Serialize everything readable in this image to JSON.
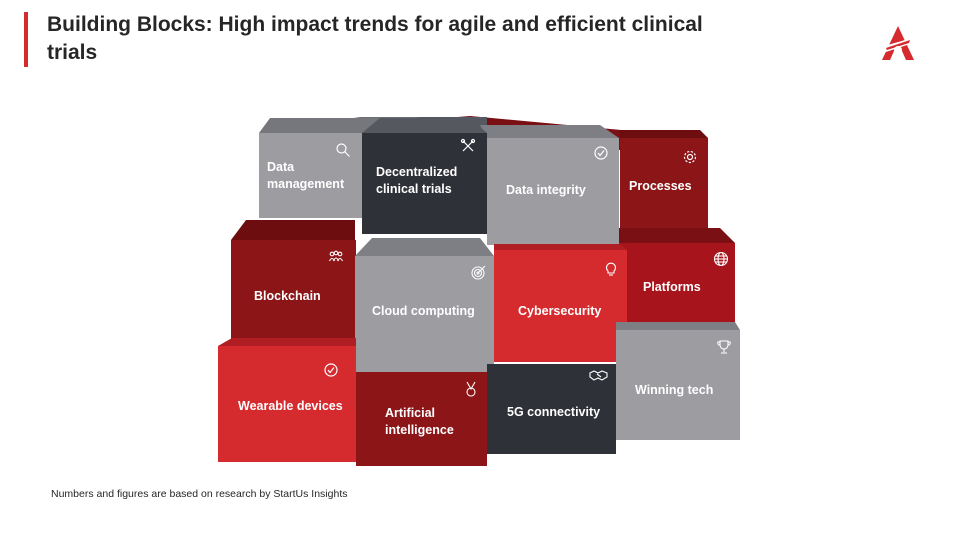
{
  "header": {
    "title": "Building Blocks: High impact trends for agile and efficient clinical trials",
    "logo_icon": "startus-logo-icon",
    "accent_color": "#d52b2f"
  },
  "blocks": [
    {
      "id": "data-management",
      "label_lines": [
        "Data",
        "management"
      ],
      "icon": "magnifier-icon",
      "color": "#9c9ca1"
    },
    {
      "id": "decentralized-clinical-trials",
      "label_lines": [
        "Decentralized",
        "clinical trials"
      ],
      "icon": "tools-icon",
      "color": "#2f3138"
    },
    {
      "id": "data-integrity",
      "label_lines": [
        "Data integrity"
      ],
      "icon": "check-circle-icon",
      "color": "#9c9ca1"
    },
    {
      "id": "processes",
      "label_lines": [
        "Processes"
      ],
      "icon": "gear-icon",
      "color": "#8c1518"
    },
    {
      "id": "blockchain",
      "label_lines": [
        "Blockchain"
      ],
      "icon": "people-icon",
      "color": "#8c1518"
    },
    {
      "id": "cloud-computing",
      "label_lines": [
        "Cloud computing"
      ],
      "icon": "target-icon",
      "color": "#9c9ca1"
    },
    {
      "id": "cybersecurity",
      "label_lines": [
        "Cybersecurity"
      ],
      "icon": "lightbulb-icon",
      "color": "#d52b2f"
    },
    {
      "id": "platforms",
      "label_lines": [
        "Platforms"
      ],
      "icon": "globe-icon",
      "color": "#a8141b"
    },
    {
      "id": "wearable-devices",
      "label_lines": [
        "Wearable devices"
      ],
      "icon": "check-circle-icon",
      "color": "#d52b2f"
    },
    {
      "id": "artificial-intelligence",
      "label_lines": [
        "Artificial",
        "intelligence"
      ],
      "icon": "medal-icon",
      "color": "#8c1518"
    },
    {
      "id": "5g-connectivity",
      "label_lines": [
        "5G connectivity"
      ],
      "icon": "handshake-icon",
      "color": "#2f3138"
    },
    {
      "id": "winning-tech",
      "label_lines": [
        "Winning tech"
      ],
      "icon": "trophy-icon",
      "color": "#9c9ca1"
    }
  ],
  "footnote": "Numbers and figures are based on research by StartUs Insights"
}
